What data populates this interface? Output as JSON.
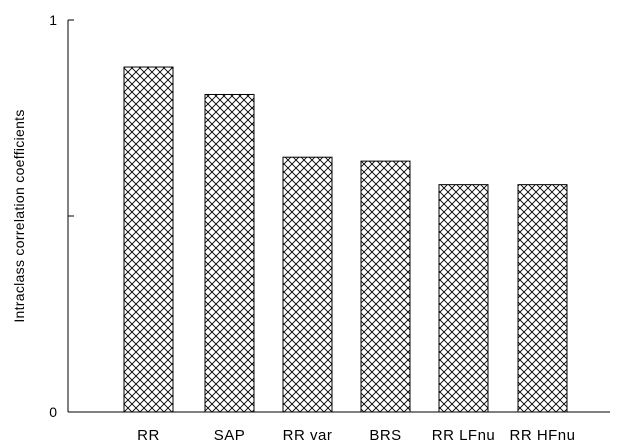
{
  "chart_data": {
    "type": "bar",
    "categories": [
      "RR",
      "SAP",
      "RR var",
      "BRS",
      "RR LFnu",
      "RR HFnu"
    ],
    "values": [
      0.88,
      0.81,
      0.65,
      0.64,
      0.58,
      0.58
    ],
    "title": "",
    "xlabel": "",
    "ylabel": "Intraclass correlation coefficients",
    "ylim": [
      0,
      1
    ],
    "yticks": [
      "0",
      "1"
    ],
    "grid": false,
    "bar_pattern": "crosshatch"
  }
}
